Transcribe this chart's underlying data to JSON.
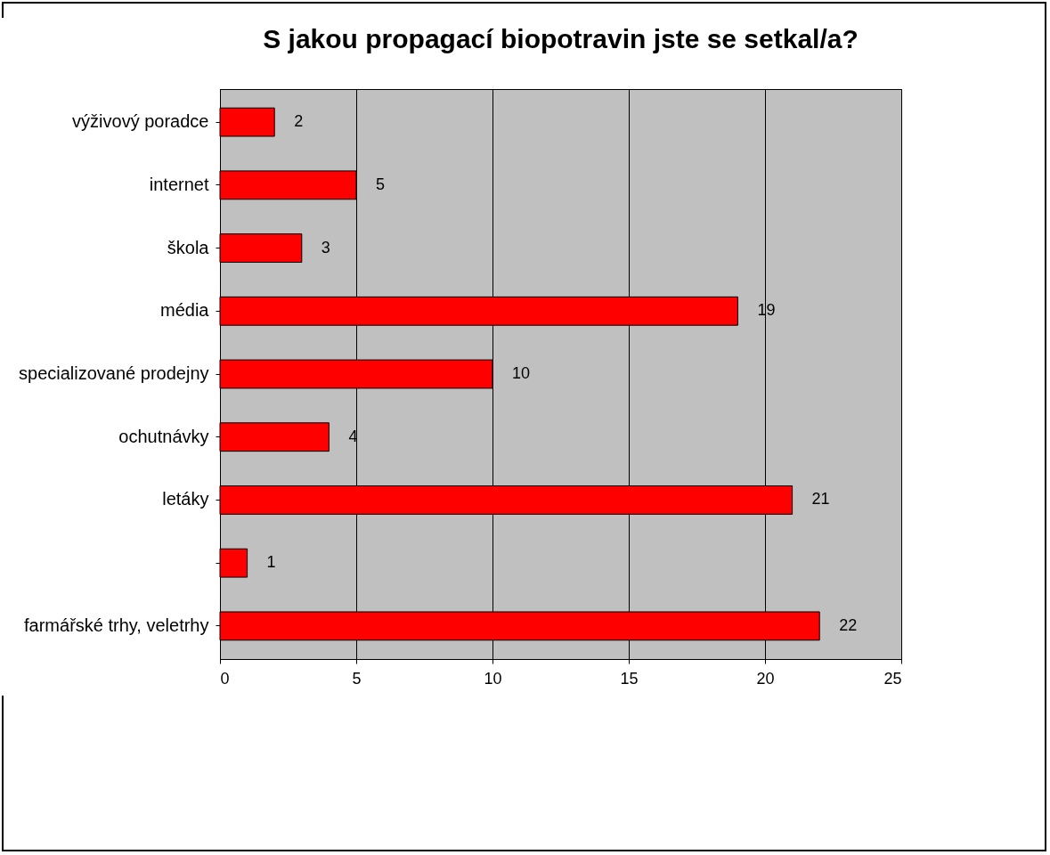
{
  "chart_data": {
    "type": "bar",
    "orientation": "horizontal",
    "title": "S jakou propagací biopotravin jste se setkal/a?",
    "categories": [
      "výživový poradce",
      "internet",
      "škola",
      "média",
      "specializované prodejny",
      "ochutnávky",
      "letáky",
      null,
      "farmářské trhy, veletrhy"
    ],
    "values": [
      2,
      5,
      3,
      19,
      10,
      4,
      21,
      1,
      22
    ],
    "color": "#ff0000",
    "xlim": [
      0,
      25
    ],
    "xticks": [
      0,
      5,
      10,
      15,
      20,
      25
    ],
    "grid": "x",
    "data_labels": true
  }
}
